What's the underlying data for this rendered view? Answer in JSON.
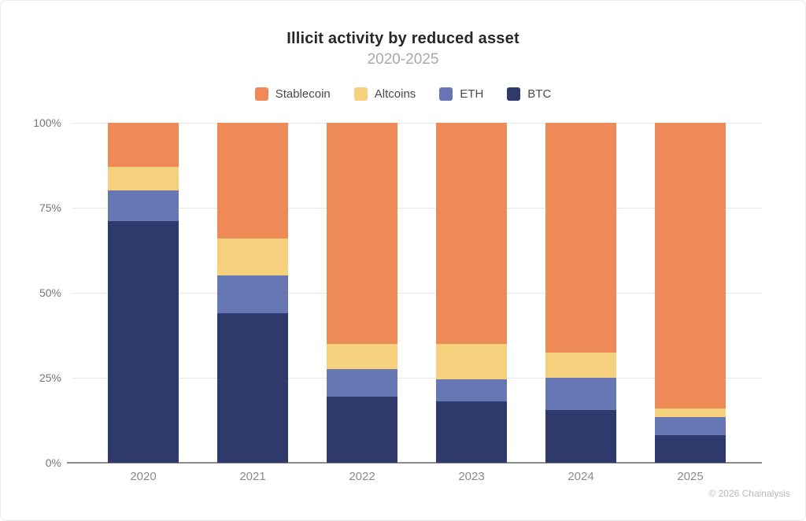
{
  "chart_data": {
    "type": "bar",
    "stacked": true,
    "stack_unit": "percent",
    "title": "Illicit activity by reduced asset",
    "subtitle": "2020-2025",
    "categories": [
      "2020",
      "2021",
      "2022",
      "2023",
      "2024",
      "2025"
    ],
    "series": [
      {
        "name": "Stablecoin",
        "color": "#ED8A58",
        "values": [
          13,
          34,
          65,
          65,
          67.5,
          84
        ]
      },
      {
        "name": "Altcoins",
        "color": "#F5D17E",
        "values": [
          7,
          11,
          7.5,
          10.5,
          7.5,
          2.5
        ]
      },
      {
        "name": "ETH",
        "color": "#6677B3",
        "values": [
          9,
          11,
          8,
          6.5,
          9.5,
          5.5
        ]
      },
      {
        "name": "BTC",
        "color": "#2E3A6C",
        "values": [
          71,
          44,
          19.5,
          18,
          15.5,
          8
        ]
      }
    ],
    "yticks": [
      "0%",
      "25%",
      "50%",
      "75%",
      "100%"
    ],
    "ylim": [
      0,
      100
    ],
    "legend_position": "top",
    "grid": "horizontal",
    "axis_color": "#8c8c8c",
    "gridline_color": "#e8e8e8"
  },
  "footer": {
    "credit": "© 2026 Chainalysis"
  }
}
